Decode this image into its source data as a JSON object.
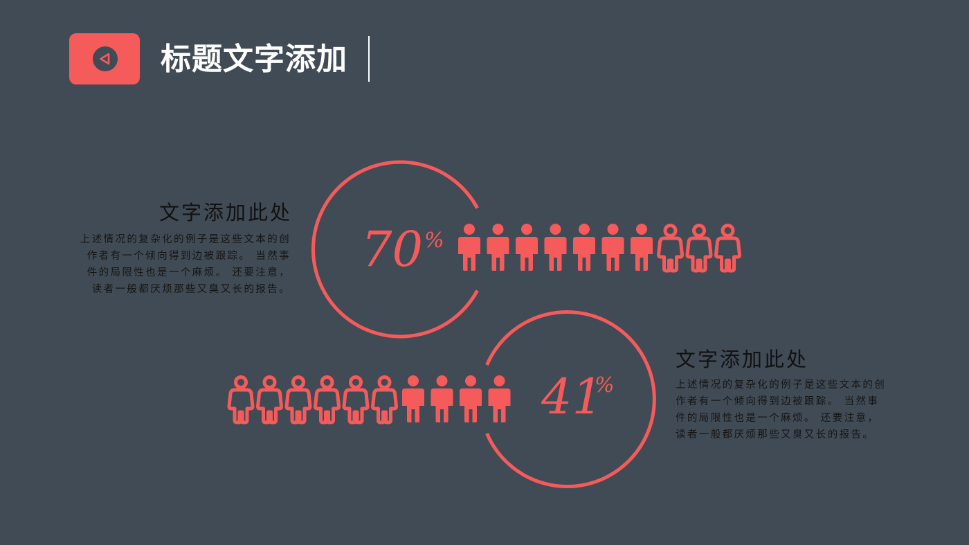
{
  "header": {
    "title": "标题文字添加",
    "accent_color": "#f65b5b",
    "badge_icon": "play-back-icon"
  },
  "stats": [
    {
      "percent_value": "70",
      "percent_sign": "%",
      "filled_people": 7,
      "total_people": 10,
      "heading": "文字添加此处",
      "body_lines": [
        "上述情况的复杂化的例子是这些文本的创",
        "作者有一个倾向得到边被跟踪。 当然事",
        "件的局限性也是一个麻烦。 还要注意，",
        "读者一般都厌烦那些又臭又长的报告。"
      ]
    },
    {
      "percent_value": "41",
      "percent_sign": "%",
      "filled_people": 4,
      "total_people": 10,
      "heading": "文字添加此处",
      "body_lines": [
        "上述情况的复杂化的例子是这些文本的创",
        "作者有一个倾向得到边被跟踪。 当然事",
        "件的局限性也是一个麻烦。 还要注意，",
        "读者一般都厌烦那些又臭又长的报告。"
      ]
    }
  ]
}
